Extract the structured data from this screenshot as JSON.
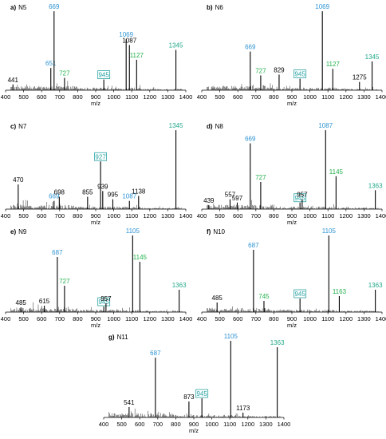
{
  "chart_data": [
    {
      "type": "line",
      "panel": "a)",
      "title": "N5",
      "xlabel": "m/z",
      "xlim": [
        400,
        1400
      ],
      "xticks": [
        400,
        500,
        600,
        700,
        800,
        900,
        1000,
        1100,
        1200,
        1300,
        1400
      ],
      "ylim": [
        0,
        100
      ],
      "peaks": [
        {
          "x": 441,
          "y": 7,
          "label": "441",
          "color": "#000000"
        },
        {
          "x": 651,
          "y": 27,
          "label": "651",
          "color": "#2e93d1"
        },
        {
          "x": 669,
          "y": 96,
          "label": "669",
          "color": "#2e93d1"
        },
        {
          "x": 727,
          "y": 15,
          "label": "727",
          "color": "#22b14c"
        },
        {
          "x": 945,
          "y": 13,
          "label": "945",
          "color": "#2ba3a3",
          "boxed": true
        },
        {
          "x": 1069,
          "y": 62,
          "label": "1069",
          "color": "#2e93d1"
        },
        {
          "x": 1087,
          "y": 55,
          "label": "1087",
          "color": "#000000"
        },
        {
          "x": 1127,
          "y": 37,
          "label": "1127",
          "color": "#22b14c"
        },
        {
          "x": 1345,
          "y": 49,
          "label": "1345",
          "color": "#22a88a"
        }
      ]
    },
    {
      "type": "line",
      "panel": "b)",
      "title": "N6",
      "xlabel": "m/z",
      "xlim": [
        400,
        1400
      ],
      "xticks": [
        400,
        500,
        600,
        700,
        800,
        900,
        1000,
        1100,
        1200,
        1300,
        1400
      ],
      "ylim": [
        0,
        100
      ],
      "peaks": [
        {
          "x": 669,
          "y": 47,
          "label": "669",
          "color": "#2e93d1"
        },
        {
          "x": 727,
          "y": 18,
          "label": "727",
          "color": "#22b14c"
        },
        {
          "x": 829,
          "y": 19,
          "label": "829",
          "color": "#000000"
        },
        {
          "x": 945,
          "y": 14,
          "label": "945",
          "color": "#2ba3a3",
          "boxed": true
        },
        {
          "x": 1069,
          "y": 96,
          "label": "1069",
          "color": "#2e93d1"
        },
        {
          "x": 1127,
          "y": 26,
          "label": "1127",
          "color": "#22b14c"
        },
        {
          "x": 1275,
          "y": 10,
          "label": "1275",
          "color": "#000000"
        },
        {
          "x": 1345,
          "y": 35,
          "label": "1345",
          "color": "#22a88a"
        }
      ]
    },
    {
      "type": "line",
      "panel": "c)",
      "title": "N7",
      "xlabel": "m/z",
      "xlim": [
        400,
        1400
      ],
      "xticks": [
        400,
        500,
        600,
        700,
        800,
        900,
        1000,
        1100,
        1200,
        1300,
        1400
      ],
      "ylim": [
        0,
        100
      ],
      "peaks": [
        {
          "x": 470,
          "y": 30,
          "label": "470",
          "color": "#000000"
        },
        {
          "x": 669,
          "y": 10,
          "label": "669",
          "color": "#2e93d1"
        },
        {
          "x": 698,
          "y": 15,
          "label": "698",
          "color": "#000000"
        },
        {
          "x": 855,
          "y": 15,
          "label": "855",
          "color": "#000000"
        },
        {
          "x": 927,
          "y": 58,
          "label": "927",
          "color": "#2ba3a3",
          "boxed": true
        },
        {
          "x": 939,
          "y": 22,
          "label": "939",
          "color": "#000000"
        },
        {
          "x": 995,
          "y": 12,
          "label": "995",
          "color": "#000000"
        },
        {
          "x": 1087,
          "y": 10,
          "label": "1087",
          "color": "#2e93d1"
        },
        {
          "x": 1138,
          "y": 16,
          "label": "1138",
          "color": "#000000"
        },
        {
          "x": 1345,
          "y": 96,
          "label": "1345",
          "color": "#22a88a"
        }
      ]
    },
    {
      "type": "line",
      "panel": "d)",
      "title": "N8",
      "xlabel": "m/z",
      "xlim": [
        400,
        1400
      ],
      "xticks": [
        400,
        500,
        600,
        700,
        800,
        900,
        1000,
        1100,
        1200,
        1300,
        1400
      ],
      "ylim": [
        0,
        100
      ],
      "peaks": [
        {
          "x": 439,
          "y": 5,
          "label": "439",
          "color": "#000000"
        },
        {
          "x": 557,
          "y": 12,
          "label": "557",
          "color": "#000000"
        },
        {
          "x": 597,
          "y": 8,
          "label": "597",
          "color": "#000000"
        },
        {
          "x": 669,
          "y": 80,
          "label": "669",
          "color": "#2e93d1"
        },
        {
          "x": 727,
          "y": 33,
          "label": "727",
          "color": "#22b14c"
        },
        {
          "x": 945,
          "y": 8,
          "label": "945",
          "color": "#2ba3a3",
          "boxed": true
        },
        {
          "x": 957,
          "y": 12,
          "label": "957",
          "color": "#000000"
        },
        {
          "x": 1087,
          "y": 96,
          "label": "1087",
          "color": "#2e93d1"
        },
        {
          "x": 1145,
          "y": 40,
          "label": "1145",
          "color": "#22b14c"
        },
        {
          "x": 1363,
          "y": 23,
          "label": "1363",
          "color": "#22a88a"
        }
      ]
    },
    {
      "type": "line",
      "panel": "e)",
      "title": "N9",
      "xlabel": "m/z",
      "xlim": [
        400,
        1400
      ],
      "xticks": [
        400,
        500,
        600,
        700,
        800,
        900,
        1000,
        1100,
        1200,
        1300,
        1400
      ],
      "ylim": [
        0,
        100
      ],
      "peaks": [
        {
          "x": 485,
          "y": 6,
          "label": "485",
          "color": "#000000"
        },
        {
          "x": 615,
          "y": 8,
          "label": "615",
          "color": "#000000"
        },
        {
          "x": 687,
          "y": 69,
          "label": "687",
          "color": "#2e93d1"
        },
        {
          "x": 727,
          "y": 33,
          "label": "727",
          "color": "#22b14c"
        },
        {
          "x": 945,
          "y": 7,
          "label": "945",
          "color": "#2ba3a3",
          "boxed": true
        },
        {
          "x": 957,
          "y": 11,
          "label": "957",
          "color": "#000000"
        },
        {
          "x": 1105,
          "y": 96,
          "label": "1105",
          "color": "#2e93d1"
        },
        {
          "x": 1145,
          "y": 63,
          "label": "1145",
          "color": "#22b14c"
        },
        {
          "x": 1363,
          "y": 28,
          "label": "1363",
          "color": "#22a88a"
        }
      ]
    },
    {
      "type": "line",
      "panel": "f)",
      "title": "N10",
      "xlabel": "m/z",
      "xlim": [
        400,
        1400
      ],
      "xticks": [
        400,
        500,
        600,
        700,
        800,
        900,
        1000,
        1100,
        1200,
        1300,
        1400
      ],
      "ylim": [
        0,
        100
      ],
      "peaks": [
        {
          "x": 485,
          "y": 12,
          "label": "485",
          "color": "#000000"
        },
        {
          "x": 687,
          "y": 78,
          "label": "687",
          "color": "#2e93d1"
        },
        {
          "x": 745,
          "y": 14,
          "label": "745",
          "color": "#22b14c"
        },
        {
          "x": 945,
          "y": 17,
          "label": "945",
          "color": "#2ba3a3",
          "boxed": true
        },
        {
          "x": 1105,
          "y": 96,
          "label": "1105",
          "color": "#2e93d1"
        },
        {
          "x": 1163,
          "y": 20,
          "label": "1163",
          "color": "#22b14c"
        },
        {
          "x": 1363,
          "y": 28,
          "label": "1363",
          "color": "#22a88a"
        }
      ]
    },
    {
      "type": "line",
      "panel": "g)",
      "title": "N11",
      "xlabel": "m/z",
      "xlim": [
        400,
        1400
      ],
      "xticks": [
        400,
        500,
        600,
        700,
        800,
        900,
        1000,
        1100,
        1200,
        1300,
        1400
      ],
      "ylim": [
        0,
        100
      ],
      "peaks": [
        {
          "x": 541,
          "y": 13,
          "label": "541",
          "color": "#000000"
        },
        {
          "x": 687,
          "y": 75,
          "label": "687",
          "color": "#2e93d1"
        },
        {
          "x": 873,
          "y": 20,
          "label": "873",
          "color": "#000000"
        },
        {
          "x": 945,
          "y": 24,
          "label": "945",
          "color": "#2ba3a3",
          "boxed": true
        },
        {
          "x": 1105,
          "y": 96,
          "label": "1105",
          "color": "#2e93d1"
        },
        {
          "x": 1173,
          "y": 6,
          "label": "1173",
          "color": "#000000"
        },
        {
          "x": 1363,
          "y": 88,
          "label": "1363",
          "color": "#22a88a"
        }
      ]
    }
  ]
}
